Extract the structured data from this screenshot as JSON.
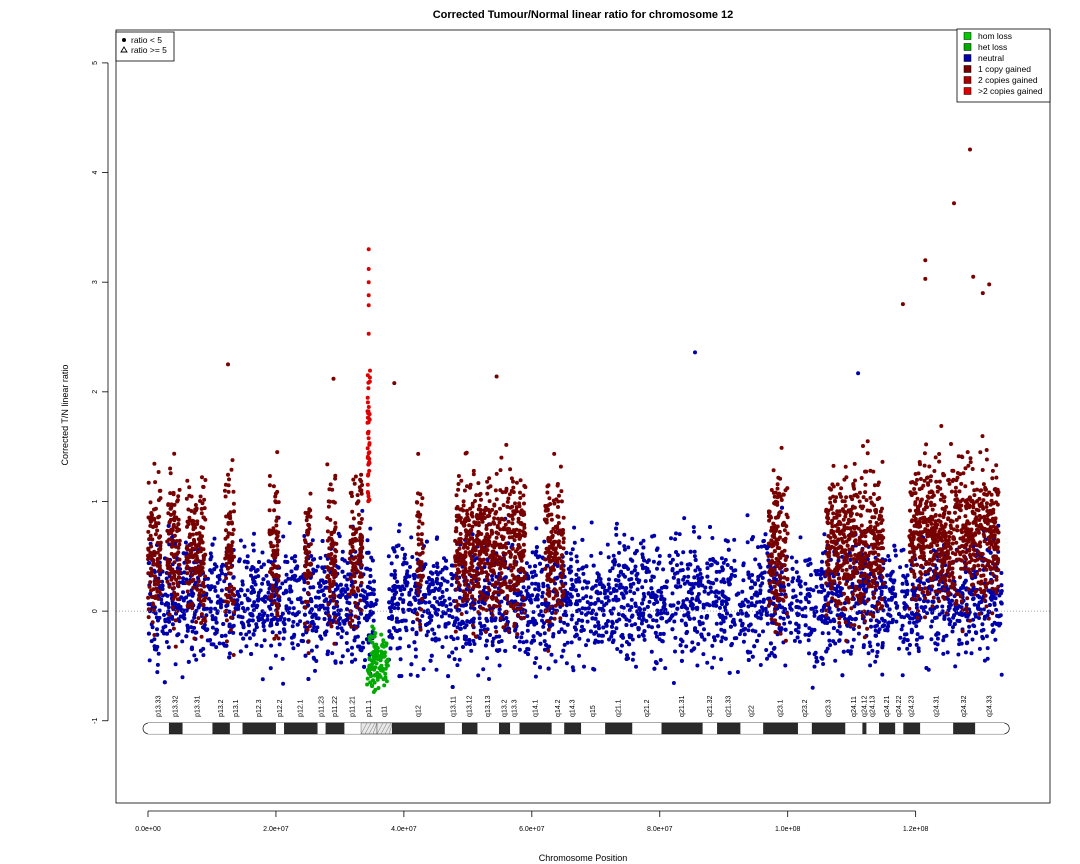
{
  "chart_data": {
    "type": "scatter",
    "title": "Corrected Tumour/Normal linear ratio for chromosome  12",
    "xlabel": "Chromosome Position",
    "ylabel": "Corrected T/N linear ratio",
    "xlim": [
      -5000000,
      141000000
    ],
    "ylim": [
      -1.75,
      5.3
    ],
    "x_ticks": [
      0,
      20000000,
      40000000,
      60000000,
      80000000,
      100000000,
      120000000
    ],
    "x_tick_labels": [
      "0.0e+00",
      "2.0e+07",
      "4.0e+07",
      "6.0e+07",
      "8.0e+07",
      "1.0e+08",
      "1.2e+08"
    ],
    "y_ticks": [
      -1,
      0,
      1,
      2,
      3,
      4,
      5
    ],
    "y_tick_labels": [
      "-1",
      "0",
      "1",
      "2",
      "3",
      "4",
      "5"
    ],
    "reference_line_y": 0,
    "grid": false,
    "shape_legend": {
      "position": "top-left",
      "entries": [
        {
          "symbol": "dot",
          "label": "ratio < 5"
        },
        {
          "symbol": "triangle",
          "label": "ratio >= 5"
        }
      ]
    },
    "legend": {
      "position": "top-right",
      "entries": [
        {
          "label": "hom loss",
          "color": "#00cc00"
        },
        {
          "label": "het loss",
          "color": "#00aa00"
        },
        {
          "label": "neutral",
          "color": "#0000aa"
        },
        {
          "label": "1 copy gained",
          "color": "#770000"
        },
        {
          "label": "2 copies gained",
          "color": "#aa0000"
        },
        {
          "label": ">2 copies gained",
          "color": "#dd0000"
        }
      ]
    },
    "series": [
      {
        "name": "neutral",
        "color": "#0000aa",
        "x_range": [
          0,
          133500000
        ],
        "y_center": 0.1,
        "y_spread": 0.5
      },
      {
        "name": "1 copy gained",
        "color": "#770000",
        "segments": [
          [
            0,
            2000000,
            0.55
          ],
          [
            3000000,
            5000000,
            0.6
          ],
          [
            6000000,
            9000000,
            0.55
          ],
          [
            12000000,
            13500000,
            0.5
          ],
          [
            19000000,
            20500000,
            0.5
          ],
          [
            24500000,
            25500000,
            0.45
          ],
          [
            28000000,
            29500000,
            0.5
          ],
          [
            31500000,
            33500000,
            0.6
          ],
          [
            42000000,
            43000000,
            0.55
          ],
          [
            48000000,
            59000000,
            0.6
          ],
          [
            62000000,
            65000000,
            0.5
          ],
          [
            97000000,
            100000000,
            0.55
          ],
          [
            106000000,
            115000000,
            0.6
          ],
          [
            119000000,
            133000000,
            0.7
          ]
        ]
      },
      {
        "name": ">2 copies gained",
        "color": "#dd0000",
        "x_range": [
          34300000,
          34700000
        ],
        "y_center": 1.8,
        "y_spread": 0.8
      },
      {
        "name": "het loss",
        "color": "#00aa00",
        "x_range": [
          34200000,
          37500000
        ],
        "y_center": -0.45,
        "y_spread": 0.25
      }
    ],
    "outliers": [
      {
        "x": 34500000,
        "y": 3.3
      },
      {
        "x": 34500000,
        "y": 3.12
      },
      {
        "x": 34500000,
        "y": 3.0
      },
      {
        "x": 34500000,
        "y": 2.88
      },
      {
        "x": 34500000,
        "y": 2.79
      },
      {
        "x": 34500000,
        "y": 2.53
      },
      {
        "x": 12500000,
        "y": 2.25
      },
      {
        "x": 54500000,
        "y": 2.14
      },
      {
        "x": 85500000,
        "y": 2.36
      },
      {
        "x": 118000000,
        "y": 2.8
      },
      {
        "x": 121500000,
        "y": 3.2
      },
      {
        "x": 121500000,
        "y": 3.03
      },
      {
        "x": 126000000,
        "y": 3.72
      },
      {
        "x": 128500000,
        "y": 4.21
      },
      {
        "x": 129000000,
        "y": 3.05
      },
      {
        "x": 130500000,
        "y": 2.9
      },
      {
        "x": 131500000,
        "y": 2.98
      },
      {
        "x": 111000000,
        "y": 2.17
      },
      {
        "x": 29000000,
        "y": 2.12
      },
      {
        "x": 38500000,
        "y": 2.08
      }
    ],
    "chromosome_ideogram": {
      "y": -1.07,
      "centromere": [
        33300000,
        38200000
      ],
      "bands": [
        {
          "name": "p13.33",
          "start": 0,
          "end": 3300000,
          "stain": "gneg"
        },
        {
          "name": "p13.32",
          "start": 3300000,
          "end": 5400000,
          "stain": "gpos"
        },
        {
          "name": "p13.31",
          "start": 5400000,
          "end": 10100000,
          "stain": "gneg"
        },
        {
          "name": "p13.2",
          "start": 10100000,
          "end": 12800000,
          "stain": "gpos"
        },
        {
          "name": "p13.1",
          "start": 12800000,
          "end": 14800000,
          "stain": "gneg"
        },
        {
          "name": "p12.3",
          "start": 14800000,
          "end": 20000000,
          "stain": "gpos"
        },
        {
          "name": "p12.2",
          "start": 20000000,
          "end": 21300000,
          "stain": "gneg"
        },
        {
          "name": "p12.1",
          "start": 21300000,
          "end": 26500000,
          "stain": "gpos"
        },
        {
          "name": "p11.23",
          "start": 26500000,
          "end": 27800000,
          "stain": "gneg"
        },
        {
          "name": "p11.22",
          "start": 27800000,
          "end": 30700000,
          "stain": "gpos"
        },
        {
          "name": "p11.21",
          "start": 30700000,
          "end": 33300000,
          "stain": "gneg"
        },
        {
          "name": "p11.1",
          "start": 33300000,
          "end": 35800000,
          "stain": "acen"
        },
        {
          "name": "q11",
          "start": 35800000,
          "end": 38200000,
          "stain": "acen"
        },
        {
          "name": "q12",
          "start": 38200000,
          "end": 46400000,
          "stain": "gpos"
        },
        {
          "name": "q13.11",
          "start": 46400000,
          "end": 49100000,
          "stain": "gneg"
        },
        {
          "name": "q13.12",
          "start": 49100000,
          "end": 51500000,
          "stain": "gpos"
        },
        {
          "name": "q13.13",
          "start": 51500000,
          "end": 54900000,
          "stain": "gneg"
        },
        {
          "name": "q13.2",
          "start": 54900000,
          "end": 56600000,
          "stain": "gpos"
        },
        {
          "name": "q13.3",
          "start": 56600000,
          "end": 58100000,
          "stain": "gneg"
        },
        {
          "name": "q14.1",
          "start": 58100000,
          "end": 63100000,
          "stain": "gpos"
        },
        {
          "name": "q14.2",
          "start": 63100000,
          "end": 65100000,
          "stain": "gneg"
        },
        {
          "name": "q14.3",
          "start": 65100000,
          "end": 67700000,
          "stain": "gpos"
        },
        {
          "name": "q15",
          "start": 67700000,
          "end": 71500000,
          "stain": "gneg"
        },
        {
          "name": "q21.1",
          "start": 71500000,
          "end": 75700000,
          "stain": "gpos"
        },
        {
          "name": "q21.2",
          "start": 75700000,
          "end": 80300000,
          "stain": "gneg"
        },
        {
          "name": "q21.31",
          "start": 80300000,
          "end": 86700000,
          "stain": "gpos"
        },
        {
          "name": "q21.32",
          "start": 86700000,
          "end": 89000000,
          "stain": "gneg"
        },
        {
          "name": "q21.33",
          "start": 89000000,
          "end": 92600000,
          "stain": "gpos"
        },
        {
          "name": "q22",
          "start": 92600000,
          "end": 96200000,
          "stain": "gneg"
        },
        {
          "name": "q23.1",
          "start": 96200000,
          "end": 101600000,
          "stain": "gpos"
        },
        {
          "name": "q23.2",
          "start": 101600000,
          "end": 103800000,
          "stain": "gneg"
        },
        {
          "name": "q23.3",
          "start": 103800000,
          "end": 109000000,
          "stain": "gpos"
        },
        {
          "name": "q24.11",
          "start": 109000000,
          "end": 111700000,
          "stain": "gneg"
        },
        {
          "name": "q24.12",
          "start": 111700000,
          "end": 112300000,
          "stain": "gpos"
        },
        {
          "name": "q24.13",
          "start": 112300000,
          "end": 114300000,
          "stain": "gneg"
        },
        {
          "name": "q24.21",
          "start": 114300000,
          "end": 116800000,
          "stain": "gpos"
        },
        {
          "name": "q24.22",
          "start": 116800000,
          "end": 118100000,
          "stain": "gneg"
        },
        {
          "name": "q24.23",
          "start": 118100000,
          "end": 120700000,
          "stain": "gpos"
        },
        {
          "name": "q24.31",
          "start": 120700000,
          "end": 125900000,
          "stain": "gneg"
        },
        {
          "name": "q24.32",
          "start": 125900000,
          "end": 129300000,
          "stain": "gpos"
        },
        {
          "name": "q24.33",
          "start": 129300000,
          "end": 133850000,
          "stain": "gneg"
        }
      ]
    }
  }
}
